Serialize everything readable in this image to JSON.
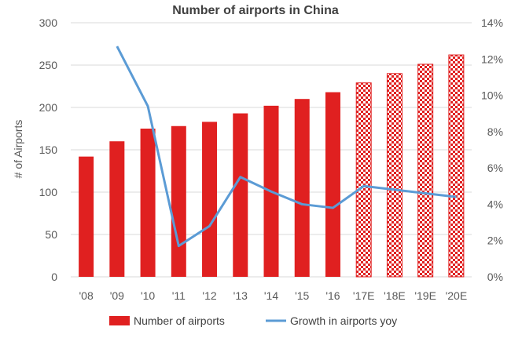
{
  "chart_data": {
    "type": "bar",
    "title": "Number of airports in China",
    "categories": [
      "'08",
      "'09",
      "'10",
      "'11",
      "'12",
      "'13",
      "'14",
      "'15",
      "'16",
      "'17E",
      "'18E",
      "'19E",
      "'20E"
    ],
    "estimated_from_index": 9,
    "series": [
      {
        "name": "Number of airports",
        "type": "bar",
        "axis": "left",
        "values": [
          142,
          160,
          175,
          178,
          183,
          193,
          202,
          210,
          218,
          229,
          240,
          251,
          262
        ]
      },
      {
        "name": "Growth in airports yoy",
        "type": "line",
        "axis": "right",
        "values": [
          null,
          12.7,
          9.4,
          1.7,
          2.8,
          5.5,
          4.7,
          4.0,
          3.8,
          5.0,
          4.8,
          4.6,
          4.4
        ]
      }
    ],
    "ylabel": "# of Airports",
    "xlabel": "",
    "ylim": [
      0,
      300
    ],
    "yticks": [
      "0",
      "50",
      "100",
      "150",
      "200",
      "250",
      "300"
    ],
    "y2lim": [
      0,
      14
    ],
    "y2ticks": [
      "0%",
      "2%",
      "4%",
      "6%",
      "8%",
      "10%",
      "12%",
      "14%"
    ],
    "grid": true,
    "legend": "bottom",
    "colors": {
      "bar": "#e02020",
      "line": "#5b9bd5",
      "grid": "#d9d9d9",
      "text": "#595959"
    }
  }
}
